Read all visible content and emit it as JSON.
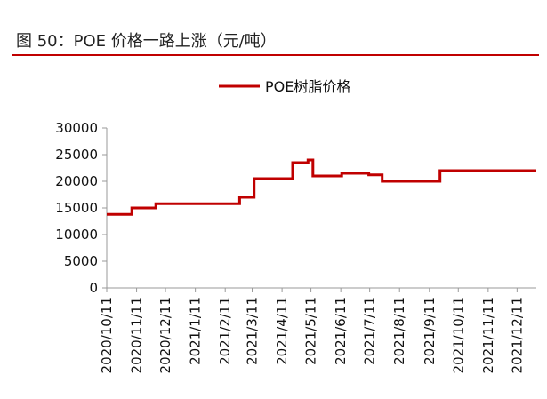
{
  "figure_title": "图 50：POE 价格一路上涨（元/吨）",
  "colors": {
    "series": "#c00000",
    "axis": "#999999",
    "rule": "#c00000"
  },
  "chart_data": {
    "type": "line",
    "title": "",
    "xlabel": "",
    "ylabel": "",
    "ylim": [
      0,
      30000
    ],
    "yticks": [
      0,
      5000,
      10000,
      15000,
      20000,
      25000,
      30000
    ],
    "ytick_labels": [
      "0",
      "5000",
      "10000",
      "15000",
      "20000",
      "25000",
      "30000"
    ],
    "grid": false,
    "legend_position": "top-center",
    "x_tick_labels": [
      "2020/10/11",
      "2020/11/11",
      "2020/12/11",
      "2021/1/11",
      "2021/2/11",
      "2021/3/11",
      "2021/4/11",
      "2021/5/11",
      "2021/6/11",
      "2021/7/11",
      "2021/8/11",
      "2021/9/11",
      "2021/10/11",
      "2021/11/11",
      "2021/12/11"
    ],
    "series": [
      {
        "name": "POE树脂价格",
        "color": "#c00000",
        "points": [
          [
            "2020/10/11",
            13800
          ],
          [
            "2020/11/6",
            13800
          ],
          [
            "2020/11/6",
            15000
          ],
          [
            "2020/12/1",
            15000
          ],
          [
            "2020/12/1",
            15800
          ],
          [
            "2021/2/26",
            15800
          ],
          [
            "2021/2/26",
            17000
          ],
          [
            "2021/3/13",
            17000
          ],
          [
            "2021/3/13",
            20500
          ],
          [
            "2021/4/22",
            20500
          ],
          [
            "2021/4/22",
            23500
          ],
          [
            "2021/5/8",
            23500
          ],
          [
            "2021/5/8",
            24000
          ],
          [
            "2021/5/13",
            24000
          ],
          [
            "2021/5/13",
            21000
          ],
          [
            "2021/6/12",
            21000
          ],
          [
            "2021/6/12",
            21500
          ],
          [
            "2021/7/10",
            21500
          ],
          [
            "2021/7/10",
            21200
          ],
          [
            "2021/7/24",
            21200
          ],
          [
            "2021/7/24",
            20000
          ],
          [
            "2021/9/22",
            20000
          ],
          [
            "2021/9/22",
            22000
          ],
          [
            "2021/12/31",
            22000
          ]
        ]
      }
    ]
  }
}
